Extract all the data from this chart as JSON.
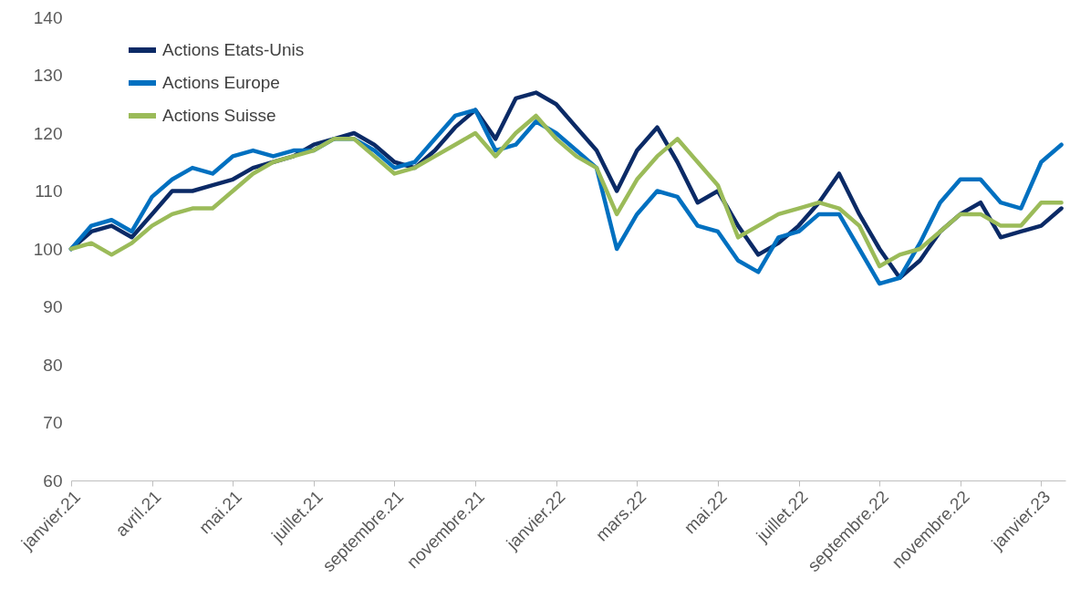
{
  "chart_data": {
    "type": "line",
    "ylim": [
      60,
      140
    ],
    "yticks": [
      60,
      70,
      80,
      90,
      100,
      110,
      120,
      130,
      140
    ],
    "categories": [
      "janvier.21",
      null,
      null,
      null,
      "avril.21",
      null,
      null,
      null,
      "mai.21",
      null,
      null,
      null,
      "juillet.21",
      null,
      null,
      null,
      "septembre.21",
      null,
      null,
      null,
      "novembre.21",
      null,
      null,
      null,
      "janvier.22",
      null,
      null,
      null,
      "mars.22",
      null,
      null,
      null,
      "mai.22",
      null,
      null,
      null,
      "juillet.22",
      null,
      null,
      null,
      "septembre.22",
      null,
      null,
      null,
      "novembre.22",
      null,
      null,
      null,
      "janvier.23",
      null
    ],
    "series": [
      {
        "name": "Actions Etats-Unis",
        "color": "#0b2a66",
        "values": [
          100,
          103,
          104,
          102,
          106,
          110,
          110,
          111,
          112,
          114,
          115,
          116,
          118,
          119,
          120,
          118,
          115,
          114,
          117,
          121,
          124,
          119,
          126,
          127,
          125,
          121,
          117,
          110,
          117,
          121,
          115,
          108,
          110,
          104,
          99,
          101,
          104,
          108,
          113,
          106,
          100,
          95,
          98,
          103,
          106,
          108,
          102,
          103,
          104,
          107
        ]
      },
      {
        "name": "Actions Europe",
        "color": "#0070c0",
        "values": [
          100,
          104,
          105,
          103,
          109,
          112,
          114,
          113,
          116,
          117,
          116,
          117,
          117,
          119,
          119,
          117,
          114,
          115,
          119,
          123,
          124,
          117,
          118,
          122,
          120,
          117,
          114,
          100,
          106,
          110,
          109,
          104,
          103,
          98,
          96,
          102,
          103,
          106,
          106,
          100,
          94,
          95,
          101,
          108,
          112,
          112,
          108,
          107,
          115,
          118
        ]
      },
      {
        "name": "Actions Suisse",
        "color": "#9bbb59",
        "values": [
          100,
          101,
          99,
          101,
          104,
          106,
          107,
          107,
          110,
          113,
          115,
          116,
          117,
          119,
          119,
          116,
          113,
          114,
          116,
          118,
          120,
          116,
          120,
          123,
          119,
          116,
          114,
          106,
          112,
          116,
          119,
          115,
          111,
          102,
          104,
          106,
          107,
          108,
          107,
          104,
          97,
          99,
          100,
          103,
          106,
          106,
          104,
          104,
          108,
          108
        ]
      }
    ],
    "legend": "top left",
    "grid": false,
    "marker": "none",
    "line_style": "solid"
  }
}
